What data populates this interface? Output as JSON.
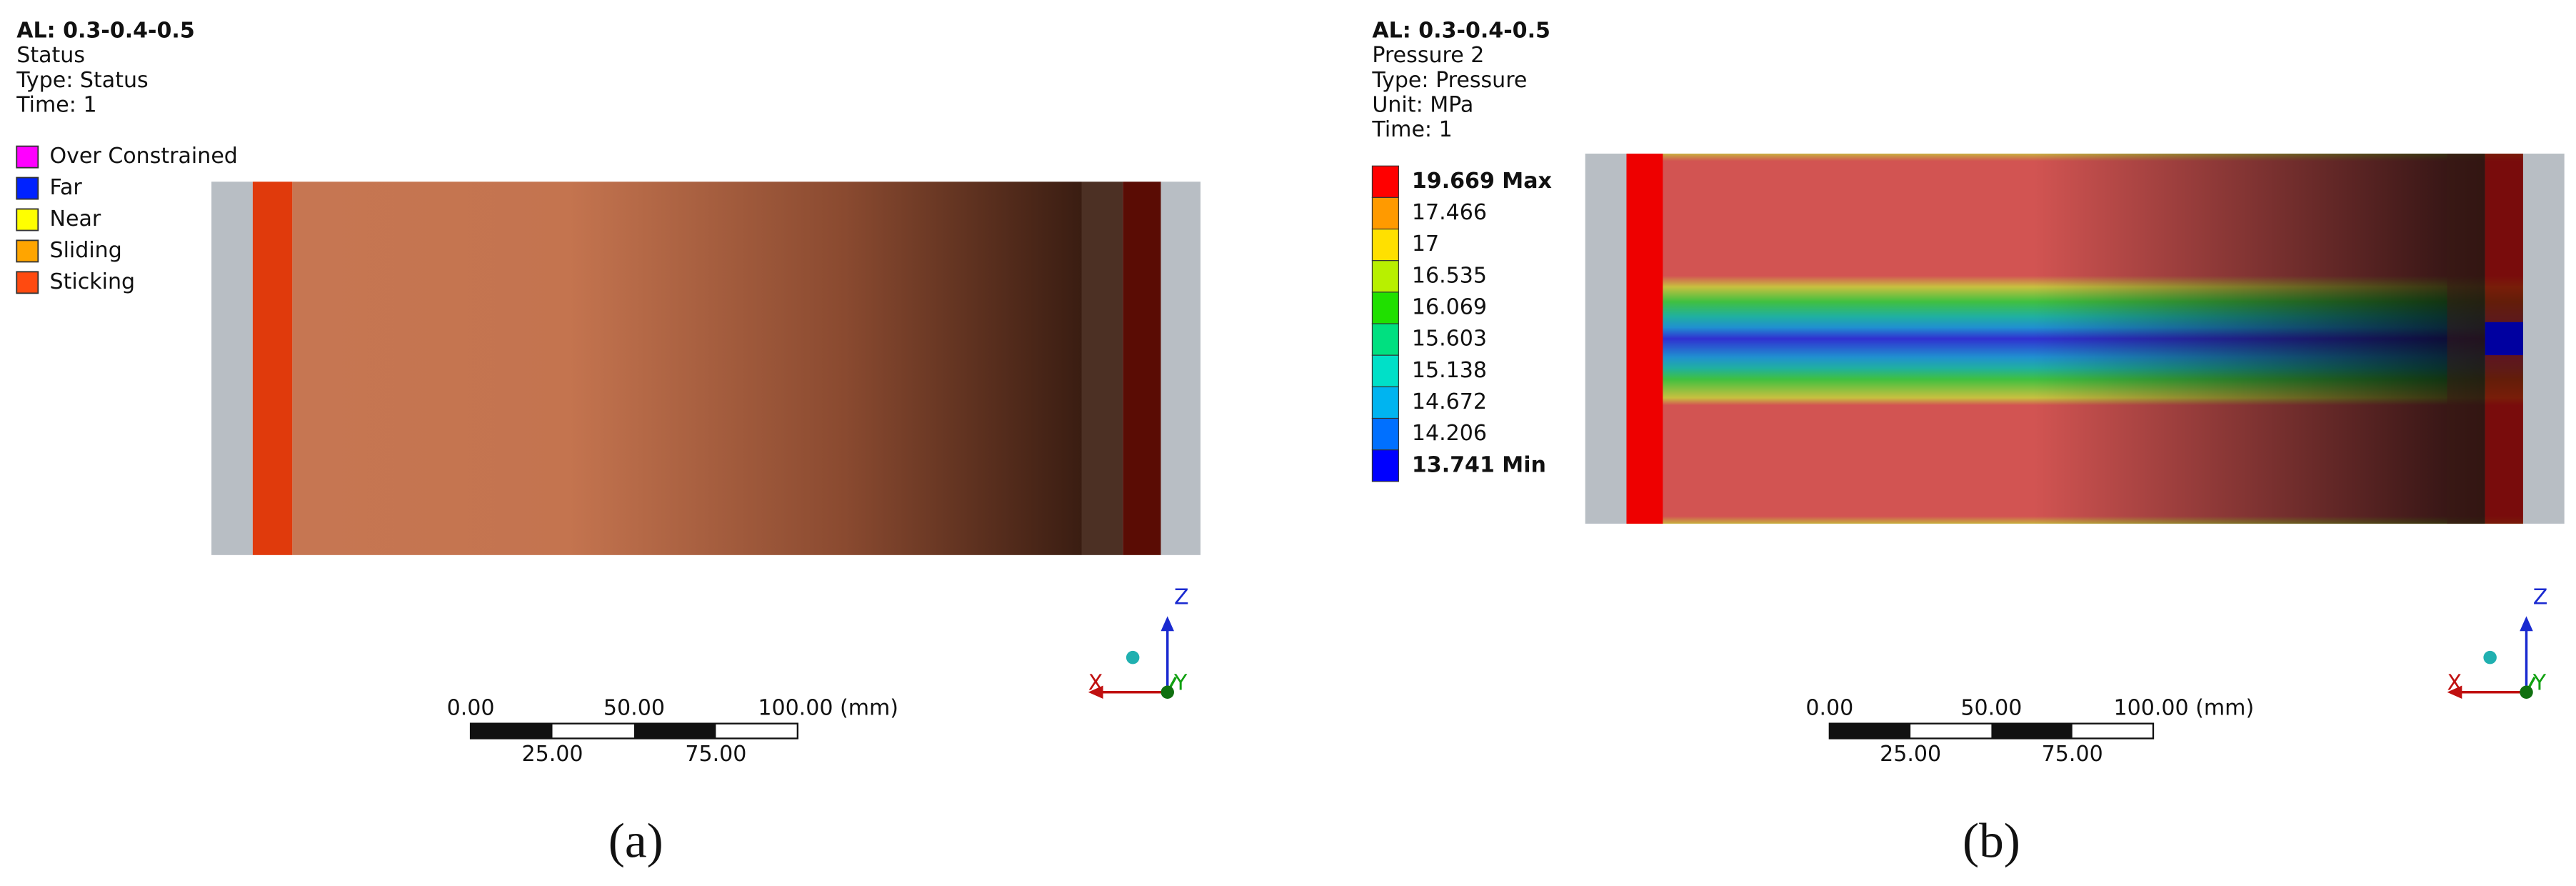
{
  "panel_a": {
    "header": [
      "AL: 0.3-0.4-0.5",
      "Status",
      "Type: Status",
      "Time: 1"
    ],
    "legend": [
      {
        "label": "Over Constrained",
        "color": "#ff00ff"
      },
      {
        "label": "Far",
        "color": "#0022ff"
      },
      {
        "label": "Near",
        "color": "#ffff00"
      },
      {
        "label": "Sliding",
        "color": "#ffa500"
      },
      {
        "label": "Sticking",
        "color": "#ff4a10"
      }
    ],
    "scale_top": [
      "0.00",
      "50.00",
      "100.00 (mm)"
    ],
    "scale_bottom": [
      "25.00",
      "75.00"
    ],
    "axes": [
      "Z",
      "X",
      "Y"
    ],
    "caption": "(a)"
  },
  "panel_b": {
    "header": [
      "AL: 0.3-0.4-0.5",
      "Pressure 2",
      "Type: Pressure",
      "Unit: MPa",
      "Time: 1"
    ],
    "legend": [
      {
        "label": "19.669 Max",
        "color": "#ff0000"
      },
      {
        "label": "17.466",
        "color": "#ff9a00"
      },
      {
        "label": "17",
        "color": "#ffe000"
      },
      {
        "label": "16.535",
        "color": "#b8f000"
      },
      {
        "label": "16.069",
        "color": "#20e000"
      },
      {
        "label": "15.603",
        "color": "#00e080"
      },
      {
        "label": "15.138",
        "color": "#00e0c8"
      },
      {
        "label": "14.672",
        "color": "#00b4f0"
      },
      {
        "label": "14.206",
        "color": "#0070ff"
      },
      {
        "label": "13.741 Min",
        "color": "#0000ff"
      }
    ],
    "scale_top": [
      "0.00",
      "50.00",
      "100.00 (mm)"
    ],
    "scale_bottom": [
      "25.00",
      "75.00"
    ],
    "axes": [
      "Z",
      "X",
      "Y"
    ],
    "caption": "(b)"
  }
}
